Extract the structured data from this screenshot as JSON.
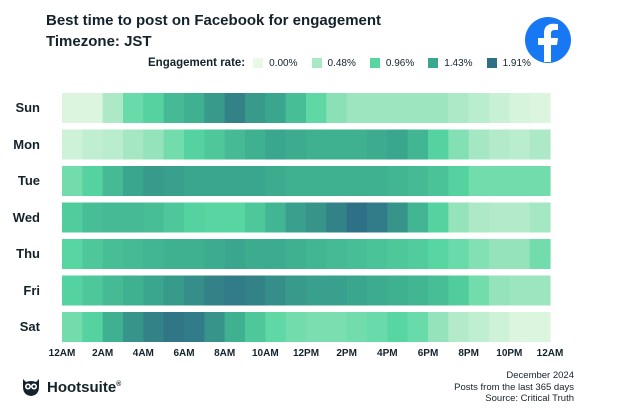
{
  "header": {
    "title": "Best time to post on Facebook for engagement",
    "subtitle": "Timezone: JST",
    "logo_icon": "facebook-icon"
  },
  "legend": {
    "title": "Engagement rate:",
    "items": [
      {
        "label": "0.00%",
        "color": "#e8f9e6"
      },
      {
        "label": "0.48%",
        "color": "#a9e8c4"
      },
      {
        "label": "0.96%",
        "color": "#57d6a1"
      },
      {
        "label": "1.43%",
        "color": "#3aa88d"
      },
      {
        "label": "1.91%",
        "color": "#2e6f86"
      }
    ]
  },
  "chart_data": {
    "type": "heatmap",
    "title": "Best time to post on Facebook for engagement",
    "subtitle": "Timezone: JST",
    "color_label": "Engagement rate",
    "color_range": [
      0,
      1.91
    ],
    "y_categories": [
      "Sun",
      "Mon",
      "Tue",
      "Wed",
      "Thu",
      "Fri",
      "Sat"
    ],
    "x_tick_labels": [
      "12AM",
      "2AM",
      "4AM",
      "6AM",
      "8AM",
      "10AM",
      "12PM",
      "2PM",
      "4PM",
      "6PM",
      "8PM",
      "10PM",
      "12AM"
    ],
    "hours": [
      0,
      1,
      2,
      3,
      4,
      5,
      6,
      7,
      8,
      9,
      10,
      11,
      12,
      13,
      14,
      15,
      16,
      17,
      18,
      19,
      20,
      21,
      22,
      23
    ],
    "values": [
      [
        0.1,
        0.1,
        0.45,
        0.85,
        1.0,
        1.25,
        1.35,
        1.55,
        1.75,
        1.55,
        1.45,
        1.2,
        0.9,
        0.65,
        0.55,
        0.55,
        0.55,
        0.55,
        0.55,
        0.45,
        0.35,
        0.25,
        0.15,
        0.1
      ],
      [
        0.2,
        0.3,
        0.35,
        0.5,
        0.6,
        0.8,
        1.0,
        1.1,
        1.25,
        1.35,
        1.45,
        1.4,
        1.35,
        1.35,
        1.35,
        1.4,
        1.45,
        1.3,
        1.0,
        0.7,
        0.5,
        0.4,
        0.35,
        0.45
      ],
      [
        0.8,
        1.0,
        1.25,
        1.45,
        1.55,
        1.5,
        1.45,
        1.45,
        1.45,
        1.45,
        1.4,
        1.35,
        1.35,
        1.35,
        1.35,
        1.35,
        1.3,
        1.25,
        1.15,
        1.0,
        0.8,
        0.8,
        0.8,
        0.8
      ],
      [
        1.05,
        1.2,
        1.25,
        1.25,
        1.2,
        1.1,
        1.0,
        0.95,
        0.95,
        1.1,
        1.3,
        1.5,
        1.6,
        1.75,
        1.9,
        1.8,
        1.6,
        1.3,
        1.0,
        0.6,
        0.45,
        0.4,
        0.4,
        0.5
      ],
      [
        0.95,
        1.1,
        1.2,
        1.25,
        1.3,
        1.35,
        1.35,
        1.4,
        1.45,
        1.4,
        1.4,
        1.35,
        1.3,
        1.25,
        1.2,
        1.15,
        1.1,
        1.05,
        0.95,
        0.85,
        0.7,
        0.6,
        0.6,
        0.8
      ],
      [
        1.0,
        1.1,
        1.25,
        1.35,
        1.45,
        1.55,
        1.65,
        1.75,
        1.8,
        1.75,
        1.65,
        1.55,
        1.5,
        1.5,
        1.45,
        1.4,
        1.35,
        1.3,
        1.2,
        1.05,
        0.8,
        0.6,
        0.55,
        0.55
      ],
      [
        0.8,
        1.0,
        1.35,
        1.6,
        1.75,
        1.85,
        1.8,
        1.6,
        1.35,
        1.1,
        0.9,
        0.8,
        0.75,
        0.75,
        0.8,
        0.85,
        0.95,
        0.85,
        0.6,
        0.4,
        0.3,
        0.2,
        0.1,
        0.1
      ]
    ]
  },
  "brand": {
    "name": "Hootsuite",
    "reg": "®",
    "icon": "owl-icon"
  },
  "footer": {
    "date": "December 2024",
    "period": "Posts from the last 365 days",
    "source": "Source: Critical Truth"
  }
}
